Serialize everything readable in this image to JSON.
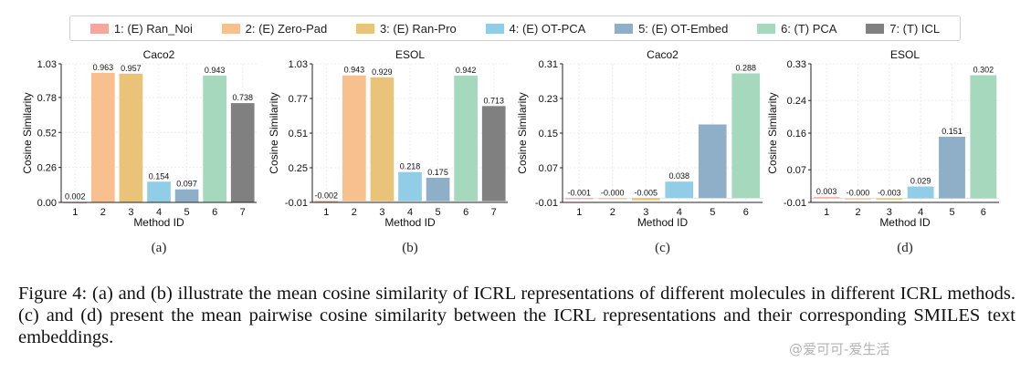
{
  "legend": [
    {
      "label": "1: (E) Ran_Noi",
      "color": "#f4a79b"
    },
    {
      "label": "2: (E) Zero-Pad",
      "color": "#f9c08f"
    },
    {
      "label": "3: (E) Ran-Pro",
      "color": "#e8c378"
    },
    {
      "label": "4: (E) OT-PCA",
      "color": "#91cde6"
    },
    {
      "label": "5: (E) OT-Embed",
      "color": "#8eafc7"
    },
    {
      "label": "6: (T) PCA",
      "color": "#a6d8be"
    },
    {
      "label": "7: (T) ICL",
      "color": "#808080"
    }
  ],
  "chart_data": [
    {
      "type": "bar",
      "title": "Caco2",
      "xlabel": "Method ID",
      "ylabel": "Cosine Similarity",
      "categories": [
        "1",
        "2",
        "3",
        "4",
        "5",
        "6",
        "7"
      ],
      "values": [
        0.002,
        0.963,
        0.957,
        0.154,
        0.097,
        0.943,
        0.738
      ],
      "value_labels": [
        "0.002",
        "0.963",
        "0.957",
        "0.154",
        "0.097",
        "0.943",
        "0.738"
      ],
      "ylim": [
        0.0,
        1.03
      ],
      "yticks": [
        0.0,
        0.26,
        0.52,
        0.78,
        1.03
      ],
      "ytick_labels": [
        "0.00",
        "0.26",
        "0.52",
        "0.78",
        "1.03"
      ],
      "grid": true,
      "sub_label": "(a)"
    },
    {
      "type": "bar",
      "title": "ESOL",
      "xlabel": "Method ID",
      "ylabel": "Cosine Similarity",
      "categories": [
        "1",
        "2",
        "3",
        "4",
        "5",
        "6",
        "7"
      ],
      "values": [
        -0.002,
        0.943,
        0.929,
        0.218,
        0.175,
        0.942,
        0.713
      ],
      "value_labels": [
        "-0.002",
        "0.943",
        "0.929",
        "0.218",
        "0.175",
        "0.942",
        "0.713"
      ],
      "ylim": [
        -0.01,
        1.03
      ],
      "yticks": [
        -0.01,
        0.25,
        0.51,
        0.77,
        1.03
      ],
      "ytick_labels": [
        "-0.01",
        "0.25",
        "0.51",
        "0.77",
        "1.03"
      ],
      "grid": true,
      "sub_label": "(b)"
    },
    {
      "type": "bar",
      "title": "Caco2",
      "xlabel": "Method ID",
      "ylabel": "Cosine Similarity",
      "categories": [
        "1",
        "2",
        "3",
        "4",
        "5",
        "6"
      ],
      "values": [
        -0.001,
        -0.0,
        -0.005,
        0.038,
        0.17,
        0.288
      ],
      "value_labels": [
        "-0.001",
        "-0.000",
        "-0.005",
        "0.038",
        "",
        "0.288"
      ],
      "ylim": [
        -0.01,
        0.31
      ],
      "yticks": [
        -0.01,
        0.07,
        0.15,
        0.23,
        0.31
      ],
      "ytick_labels": [
        "-0.01",
        "0.07",
        "0.15",
        "0.23",
        "0.31"
      ],
      "grid": true,
      "sub_label": "(c)"
    },
    {
      "type": "bar",
      "title": "ESOL",
      "xlabel": "Method ID",
      "ylabel": "Cosine Similarity",
      "categories": [
        "1",
        "2",
        "3",
        "4",
        "5",
        "6"
      ],
      "values": [
        0.003,
        -0.0,
        -0.003,
        0.029,
        0.151,
        0.302
      ],
      "value_labels": [
        "0.003",
        "-0.000",
        "-0.003",
        "0.029",
        "0.151",
        "0.302"
      ],
      "ylim": [
        -0.01,
        0.33
      ],
      "yticks": [
        -0.01,
        0.07,
        0.16,
        0.24,
        0.33
      ],
      "ytick_labels": [
        "-0.01",
        "0.07",
        "0.16",
        "0.24",
        "0.33"
      ],
      "grid": true,
      "sub_label": "(d)"
    }
  ],
  "caption": "Figure 4: (a) and (b) illustrate the mean cosine similarity of ICRL representations of different molecules in different ICRL methods. (c) and (d) present the mean pairwise cosine similarity between the ICRL representations and their corresponding SMILES text embeddings.",
  "watermark": "@爱可可-爱生活"
}
